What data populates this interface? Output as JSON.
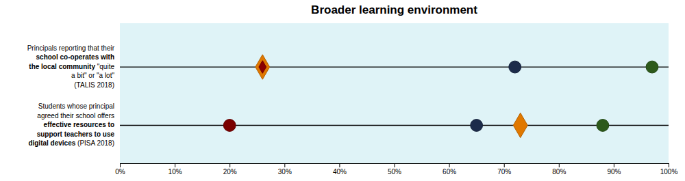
{
  "chart_data": {
    "type": "dot",
    "title": "Broader learning environment",
    "background": "#dff3f7",
    "xlim": [
      0,
      1.0
    ],
    "xticks": [
      {
        "value": 0.0,
        "label": "0%"
      },
      {
        "value": 0.1,
        "label": "10%"
      },
      {
        "value": 0.2,
        "label": "20%"
      },
      {
        "value": 0.3,
        "label": "30%"
      },
      {
        "value": 0.4,
        "label": "40%"
      },
      {
        "value": 0.5,
        "label": "50%"
      },
      {
        "value": 0.6,
        "label": "60%"
      },
      {
        "value": 0.7,
        "label": "70%"
      },
      {
        "value": 0.8,
        "label": "80%"
      },
      {
        "value": 0.9,
        "label": "90%"
      },
      {
        "value": 1.0,
        "label": "100%"
      }
    ],
    "ylim": [
      -0.65,
      1.75
    ],
    "tick_labels": "x",
    "rows": [
      {
        "y": 1,
        "label_lines": [
          [
            {
              "text": "Principals reporting that their",
              "bold": false
            }
          ],
          [
            {
              "text": "school co-operates with",
              "bold": true
            }
          ],
          [
            {
              "text": "the local community",
              "bold": true
            },
            {
              "text": " \"quite",
              "bold": false
            }
          ],
          [
            {
              "text": "a bit\" or \"a lot\"",
              "bold": false
            }
          ],
          [
            {
              "text": "(TALIS 2018)",
              "bold": false
            }
          ]
        ],
        "points": [
          {
            "x": 0.26,
            "marker": "diamond",
            "color": "#E07800"
          },
          {
            "x": 0.26,
            "marker": "inner-diamond",
            "color": "#8B0000"
          },
          {
            "x": 0.72,
            "marker": "circle",
            "color": "#1c2b4a"
          },
          {
            "x": 0.97,
            "marker": "circle",
            "color": "#2d5a1b"
          }
        ]
      },
      {
        "y": 0,
        "label_lines": [
          [
            {
              "text": "Students whose principal",
              "bold": false
            }
          ],
          [
            {
              "text": "agreed their school offers",
              "bold": false
            }
          ],
          [
            {
              "text": "effective resources to",
              "bold": true
            }
          ],
          [
            {
              "text": "support teachers to use",
              "bold": true
            }
          ],
          [
            {
              "text": "digital devices",
              "bold": true
            },
            {
              "text": " (PISA 2018)",
              "bold": false
            }
          ]
        ],
        "points": [
          {
            "x": 0.2,
            "marker": "circle",
            "color": "#7a0000"
          },
          {
            "x": 0.65,
            "marker": "circle",
            "color": "#1c2b4a"
          },
          {
            "x": 0.73,
            "marker": "diamond",
            "color": "#E07800"
          },
          {
            "x": 0.88,
            "marker": "circle",
            "color": "#2d5a1b"
          }
        ]
      }
    ]
  }
}
